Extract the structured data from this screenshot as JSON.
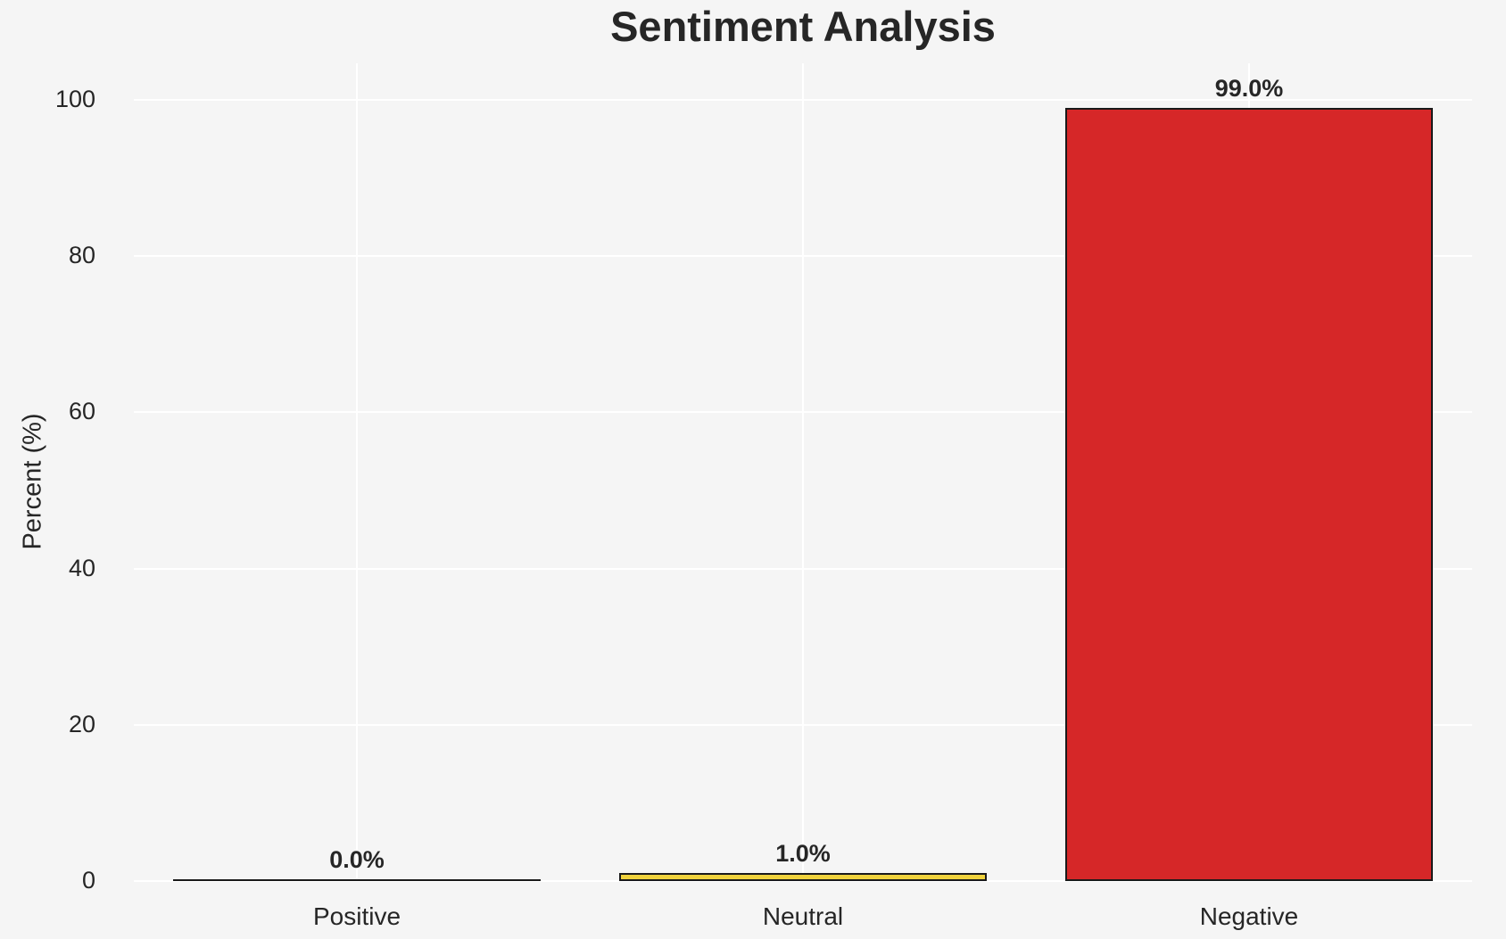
{
  "chart_data": {
    "type": "bar",
    "title": "Sentiment Analysis",
    "categories": [
      "Positive",
      "Neutral",
      "Negative"
    ],
    "values": [
      0.0,
      1.0,
      99.0
    ],
    "value_labels": [
      "0.0%",
      "1.0%",
      "99.0%"
    ],
    "bar_colors": [
      null,
      "#f0d23c",
      "#d62728"
    ],
    "bar_edge_color": "#1a1a1a",
    "xlabel": "",
    "ylabel": "Percent (%)",
    "ylim": [
      0,
      105
    ],
    "yticks": [
      0,
      20,
      40,
      60,
      80,
      100
    ],
    "ytick_labels": [
      "0",
      "20",
      "40",
      "60",
      "80",
      "100"
    ],
    "grid": true,
    "gridline_color": "#ffffff",
    "background_color": "#f5f5f5",
    "text_color": "#262626",
    "legend_position": "none"
  }
}
